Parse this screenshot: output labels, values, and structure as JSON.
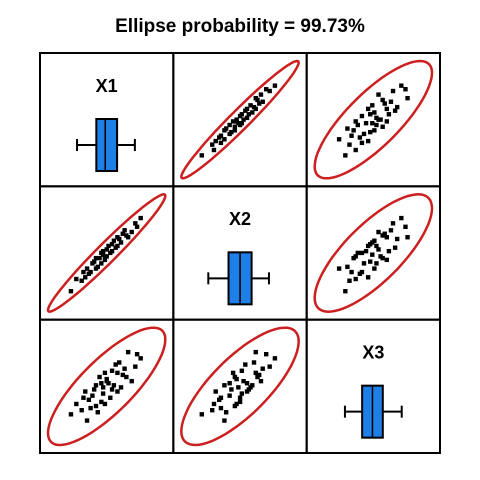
{
  "chart_data": {
    "type": "scatter_matrix",
    "title": "Ellipse probability = 99.73%",
    "ellipse_probability": 99.73,
    "point_color": "#000000",
    "ellipse_color": "#cc1f1f",
    "box_color": "#1e7fe6",
    "variables": [
      {
        "name": "X1",
        "values": [
          5.0,
          4.2,
          6.1,
          5.5,
          3.8,
          6.8,
          4.9,
          5.2,
          4.5,
          5.8,
          3.5,
          6.4,
          4.7,
          5.3,
          5.9,
          4.1,
          6.6,
          5.1,
          4.4,
          5.6,
          3.2,
          7.1,
          4.8,
          5.4,
          6.2,
          4.0,
          5.7,
          4.6,
          6.0,
          5.0,
          4.3,
          6.3,
          5.5,
          4.9,
          3.9,
          6.9,
          5.2,
          4.6,
          5.8,
          5.1
        ],
        "box": {
          "min": 3.2,
          "q1": 4.5,
          "median": 5.1,
          "q3": 5.9,
          "max": 7.1
        }
      },
      {
        "name": "X2",
        "values": [
          5.1,
          4.0,
          6.3,
          5.3,
          3.6,
          6.9,
          5.2,
          5.0,
          4.7,
          5.6,
          3.7,
          6.1,
          4.4,
          5.6,
          6.0,
          4.3,
          6.4,
          4.8,
          4.6,
          5.9,
          3.0,
          7.2,
          4.9,
          5.2,
          6.5,
          3.8,
          5.5,
          4.9,
          5.8,
          5.3,
          4.1,
          6.2,
          5.7,
          4.6,
          4.1,
          6.7,
          5.4,
          4.3,
          6.1,
          5.0
        ],
        "box": {
          "min": 3.0,
          "q1": 4.4,
          "median": 5.2,
          "q3": 6.0,
          "max": 7.2
        }
      },
      {
        "name": "X3",
        "values": [
          5.2,
          4.6,
          5.8,
          6.0,
          4.1,
          6.2,
          4.5,
          5.6,
          5.1,
          5.0,
          4.4,
          6.9,
          4.0,
          5.4,
          6.4,
          3.6,
          5.5,
          5.9,
          4.8,
          5.3,
          3.9,
          6.6,
          5.7,
          4.7,
          6.1,
          5.0,
          6.3,
          4.3,
          5.2,
          4.9,
          4.2,
          5.7,
          5.1,
          5.4,
          4.7,
          6.8,
          5.5,
          5.3,
          5.9,
          4.4
        ],
        "box": {
          "min": 3.6,
          "q1": 4.6,
          "median": 5.2,
          "q3": 5.8,
          "max": 6.9
        }
      }
    ]
  }
}
